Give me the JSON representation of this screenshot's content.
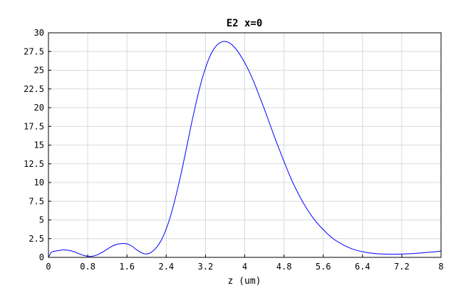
{
  "chart_data": {
    "type": "line",
    "title": "E2 x=0",
    "xlabel": "z (um)",
    "ylabel": "",
    "xlim": [
      0,
      8
    ],
    "ylim": [
      0,
      30
    ],
    "x_ticks": [
      "0",
      "0.8",
      "1.6",
      "2.4",
      "3.2",
      "4",
      "4.8",
      "5.6",
      "6.4",
      "7.2",
      "8"
    ],
    "y_ticks": [
      "0",
      "2.5",
      "5",
      "7.5",
      "10",
      "12.5",
      "15",
      "17.5",
      "20",
      "22.5",
      "25",
      "27.5",
      "30"
    ],
    "grid": true,
    "series": [
      {
        "color": "#0000ff",
        "x": [
          0,
          0.05,
          0.1,
          0.2,
          0.3,
          0.4,
          0.5,
          0.6,
          0.7,
          0.8,
          0.9,
          1.0,
          1.1,
          1.2,
          1.3,
          1.4,
          1.5,
          1.6,
          1.7,
          1.8,
          1.9,
          2.0,
          2.1,
          2.2,
          2.3,
          2.4,
          2.5,
          2.6,
          2.7,
          2.8,
          2.9,
          3.0,
          3.1,
          3.2,
          3.3,
          3.4,
          3.5,
          3.6,
          3.7,
          3.8,
          3.9,
          4.0,
          4.1,
          4.2,
          4.3,
          4.4,
          4.5,
          4.6,
          4.7,
          4.8,
          4.9,
          5.0,
          5.2,
          5.4,
          5.6,
          5.8,
          6.0,
          6.2,
          6.4,
          6.6,
          6.8,
          7.0,
          7.2,
          7.4,
          7.6,
          7.8,
          8.0
        ],
        "y": [
          0,
          0.6,
          0.8,
          0.9,
          1.0,
          0.95,
          0.8,
          0.55,
          0.3,
          0.15,
          0.15,
          0.35,
          0.7,
          1.1,
          1.5,
          1.75,
          1.85,
          1.8,
          1.5,
          1.0,
          0.6,
          0.45,
          0.7,
          1.3,
          2.3,
          3.8,
          5.8,
          8.3,
          11.1,
          14.2,
          17.4,
          20.4,
          23.1,
          25.3,
          27.0,
          28.1,
          28.7,
          28.85,
          28.6,
          28.0,
          27.1,
          26.0,
          24.7,
          23.2,
          21.5,
          19.8,
          18.0,
          16.2,
          14.5,
          12.8,
          11.2,
          9.7,
          7.2,
          5.2,
          3.7,
          2.5,
          1.7,
          1.1,
          0.75,
          0.55,
          0.45,
          0.42,
          0.45,
          0.5,
          0.6,
          0.7,
          0.85
        ]
      }
    ]
  }
}
